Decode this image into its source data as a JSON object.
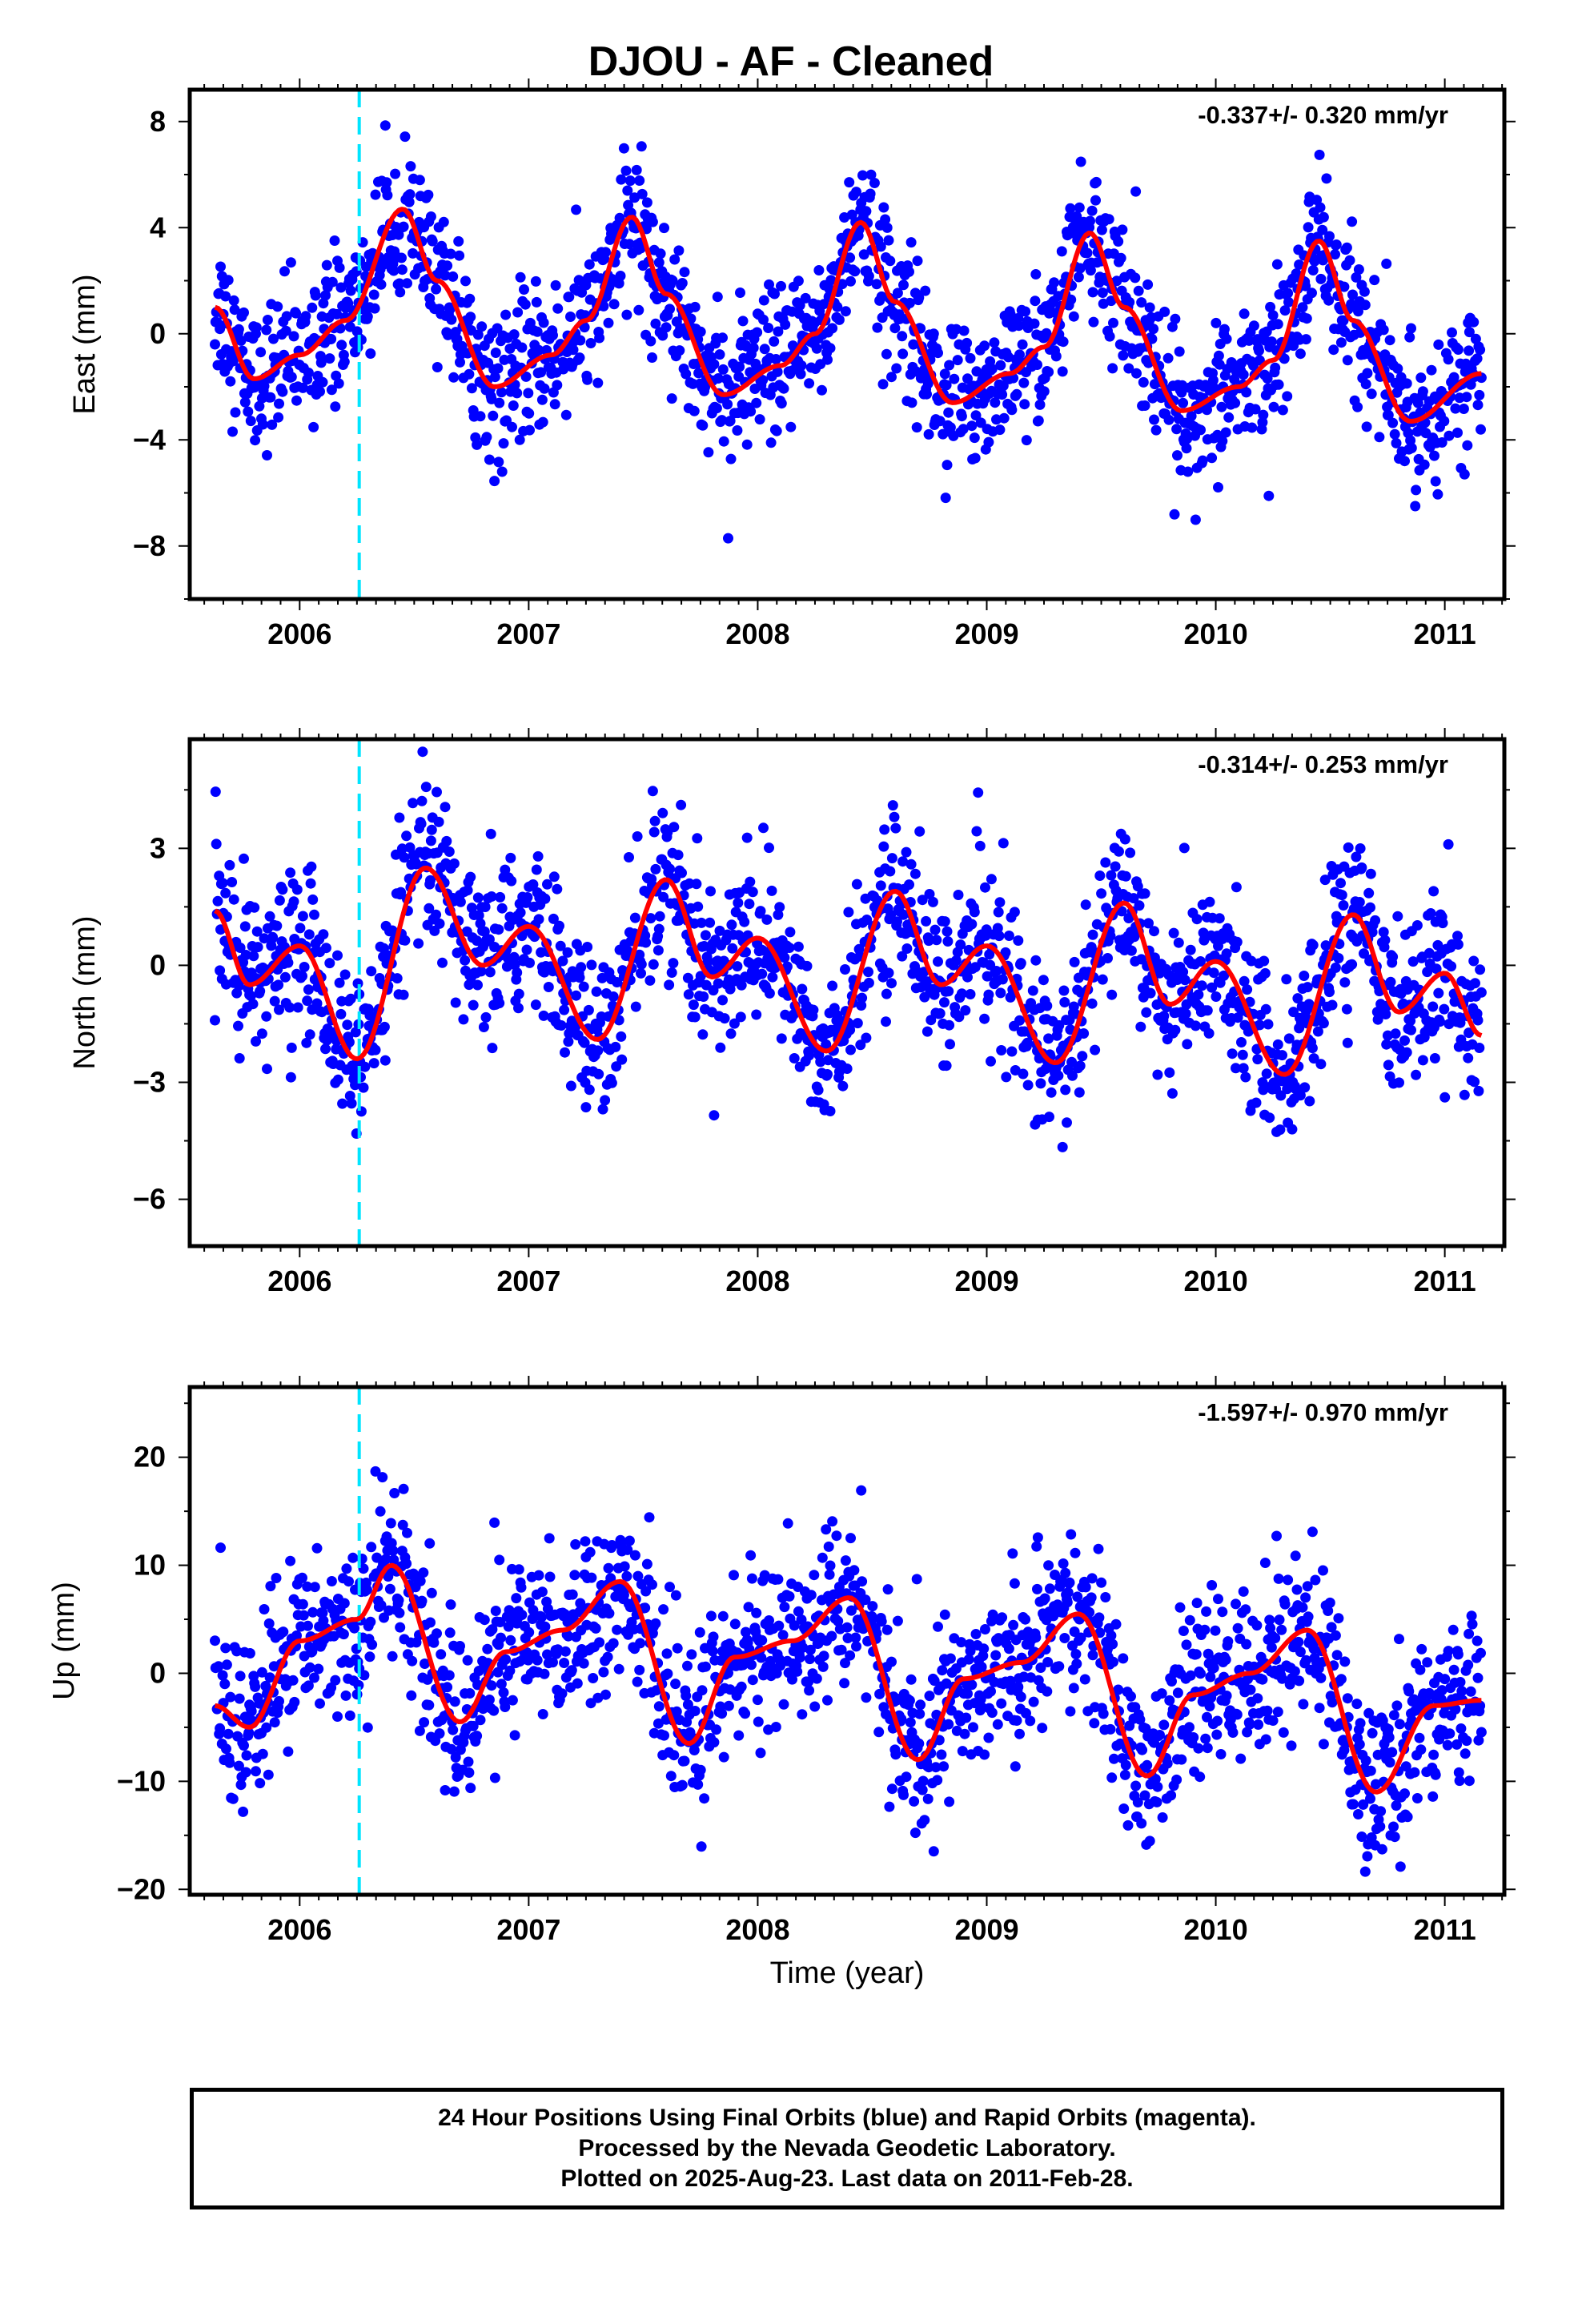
{
  "title": "DJOU  - AF - Cleaned",
  "xlabel": "Time (year)",
  "colors": {
    "points": "#0000ff",
    "model": "#ff0000",
    "event": "#00e5ff",
    "axes": "#000000"
  },
  "footer": {
    "line1": "24 Hour Positions Using Final Orbits (blue) and Rapid Orbits (magenta).",
    "line2": "Processed by the Nevada Geodetic Laboratory.",
    "line3": "Plotted on 2025-Aug-23. Last data on 2011-Feb-28."
  },
  "chart_data": [
    {
      "type": "scatter",
      "panel": "east",
      "ylabel": "East (mm)",
      "rate_label": "-0.337+/- 0.320 mm/yr",
      "xlim": [
        2005.52,
        2011.26
      ],
      "ylim": [
        -10.0,
        9.2
      ],
      "yticks": [
        -8,
        -4,
        0,
        4,
        8
      ],
      "xticks": [
        2006,
        2007,
        2008,
        2009,
        2010,
        2011
      ],
      "event_line_x": 2006.26,
      "data_range": [
        2005.63,
        2011.16
      ],
      "model_curve": {
        "x": [
          2005.63,
          2005.8,
          2006.0,
          2006.2,
          2006.45,
          2006.6,
          2006.85,
          2007.1,
          2007.25,
          2007.45,
          2007.6,
          2007.85,
          2008.1,
          2008.25,
          2008.45,
          2008.6,
          2008.85,
          2009.1,
          2009.25,
          2009.45,
          2009.6,
          2009.85,
          2010.1,
          2010.25,
          2010.45,
          2010.6,
          2010.85,
          2011.16
        ],
        "y": [
          1.0,
          -1.7,
          -0.8,
          0.5,
          4.7,
          2.0,
          -2.0,
          -0.8,
          0.5,
          4.4,
          1.5,
          -2.3,
          -1.2,
          0.0,
          4.2,
          1.2,
          -2.6,
          -1.5,
          -0.5,
          3.8,
          1.0,
          -2.9,
          -2.0,
          -1.0,
          3.5,
          0.5,
          -3.3,
          -1.5
        ]
      },
      "scatter_points_estimated": 1800
    },
    {
      "type": "scatter",
      "panel": "north",
      "ylabel": "North (mm)",
      "rate_label": "-0.314+/- 0.253 mm/yr",
      "xlim": [
        2005.52,
        2011.26
      ],
      "ylim": [
        -7.2,
        5.8
      ],
      "yticks": [
        -6,
        -3,
        0,
        3
      ],
      "xticks": [
        2006,
        2007,
        2008,
        2009,
        2010,
        2011
      ],
      "event_line_x": 2006.26,
      "data_range": [
        2005.63,
        2011.16
      ],
      "model_curve": {
        "x": [
          2005.63,
          2005.78,
          2006.0,
          2006.25,
          2006.55,
          2006.8,
          2007.0,
          2007.3,
          2007.6,
          2007.8,
          2008.0,
          2008.3,
          2008.6,
          2008.8,
          2009.0,
          2009.3,
          2009.6,
          2009.8,
          2010.0,
          2010.3,
          2010.6,
          2010.8,
          2011.0,
          2011.16
        ],
        "y": [
          1.4,
          -0.5,
          0.5,
          -2.4,
          2.5,
          0.0,
          1.0,
          -1.9,
          2.2,
          -0.3,
          0.7,
          -2.2,
          1.9,
          -0.5,
          0.5,
          -2.5,
          1.6,
          -1.0,
          0.1,
          -2.8,
          1.3,
          -1.2,
          -0.2,
          -1.8
        ]
      },
      "scatter_points_estimated": 1800
    },
    {
      "type": "scatter",
      "panel": "up",
      "ylabel": "Up (mm)",
      "rate_label": "-1.597+/- 0.970 mm/yr",
      "xlim": [
        2005.52,
        2011.26
      ],
      "ylim": [
        -20.5,
        26.5
      ],
      "yticks": [
        -20,
        -10,
        0,
        10,
        20
      ],
      "xticks": [
        2006,
        2007,
        2008,
        2009,
        2010,
        2011
      ],
      "event_line_x": 2006.26,
      "data_range": [
        2005.63,
        2011.16
      ],
      "model_curve": {
        "x": [
          2005.63,
          2005.78,
          2006.0,
          2006.25,
          2006.4,
          2006.7,
          2006.9,
          2007.15,
          2007.4,
          2007.7,
          2007.9,
          2008.15,
          2008.4,
          2008.7,
          2008.9,
          2009.15,
          2009.4,
          2009.7,
          2009.9,
          2010.15,
          2010.4,
          2010.7,
          2010.95,
          2011.16
        ],
        "y": [
          -3.0,
          -5.0,
          3.0,
          5.0,
          10.0,
          -4.5,
          2.0,
          4.0,
          8.5,
          -6.5,
          1.5,
          3.0,
          7.0,
          -8.0,
          -0.5,
          1.0,
          5.5,
          -9.5,
          -2.0,
          0.0,
          4.0,
          -11.0,
          -3.0,
          -2.5
        ]
      },
      "scatter_points_estimated": 1800
    }
  ]
}
